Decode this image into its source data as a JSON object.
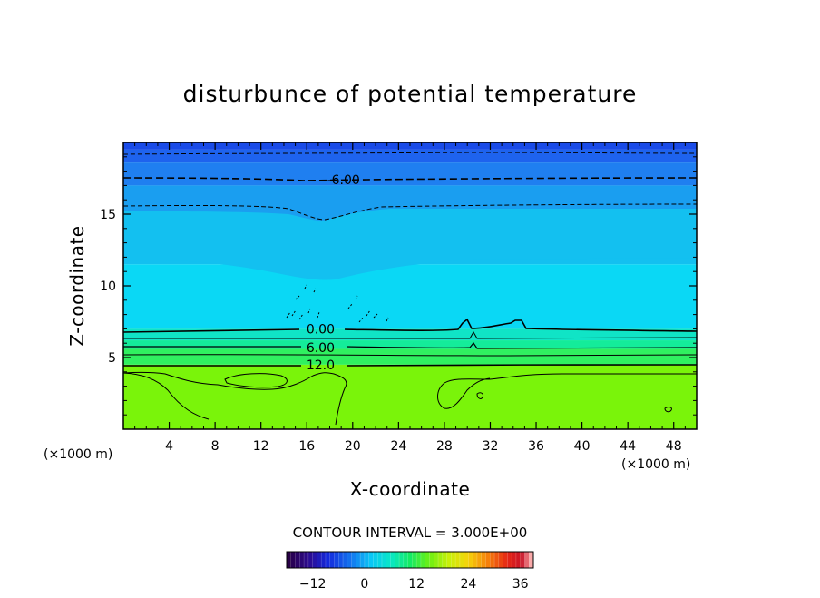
{
  "chart_data": {
    "type": "contour",
    "title": "disturbunce of potential temperature",
    "xlabel": "X-coordinate",
    "ylabel": "Z-coordinate",
    "x_unit": "(×1000 m)",
    "z_unit": "(×1000 m)",
    "xlim": [
      0,
      50
    ],
    "ylim": [
      0,
      20
    ],
    "x_ticks": [
      4,
      8,
      12,
      16,
      20,
      24,
      28,
      32,
      36,
      40,
      44,
      48
    ],
    "y_ticks": [
      5,
      10,
      15
    ],
    "contour_interval_text": "CONTOUR INTERVAL = 3.000E+00",
    "contour_labels": [
      {
        "value": "-6.00",
        "x": 19.2,
        "z": 17.4
      },
      {
        "value": "0.00",
        "x": 17.2,
        "z": 7.0
      },
      {
        "value": "6.00",
        "x": 17.2,
        "z": 5.7
      },
      {
        "value": "12.0",
        "x": 17.2,
        "z": 4.5
      }
    ],
    "layers": [
      {
        "from": 19.5,
        "to": 20,
        "value": -12,
        "color": "#1a4be8"
      },
      {
        "from": 18.6,
        "to": 19.5,
        "value": -9,
        "color": "#1e63ee"
      },
      {
        "from": 17.0,
        "to": 18.6,
        "value": -6,
        "color": "#1f7ff0"
      },
      {
        "from": 15.6,
        "to": 17.0,
        "value": -4.5,
        "color": "#1a9ef0"
      },
      {
        "from": 11.5,
        "to": 15.6,
        "value": -3,
        "color": "#13c0f0"
      },
      {
        "from": 7.0,
        "to": 11.5,
        "value": -1.5,
        "color": "#0ad8f5"
      },
      {
        "from": 6.2,
        "to": 7.0,
        "value": 1.5,
        "color": "#10e4c6"
      },
      {
        "from": 5.6,
        "to": 6.2,
        "value": 4.5,
        "color": "#14ec9a"
      },
      {
        "from": 4.5,
        "to": 5.6,
        "value": 9,
        "color": "#30f060"
      },
      {
        "from": 0,
        "to": 4.5,
        "value": 13.5,
        "color": "#7af40a"
      }
    ],
    "colorbar": {
      "min": -18,
      "max": 39,
      "ticks": [
        -12,
        0,
        12,
        24,
        36
      ]
    }
  }
}
